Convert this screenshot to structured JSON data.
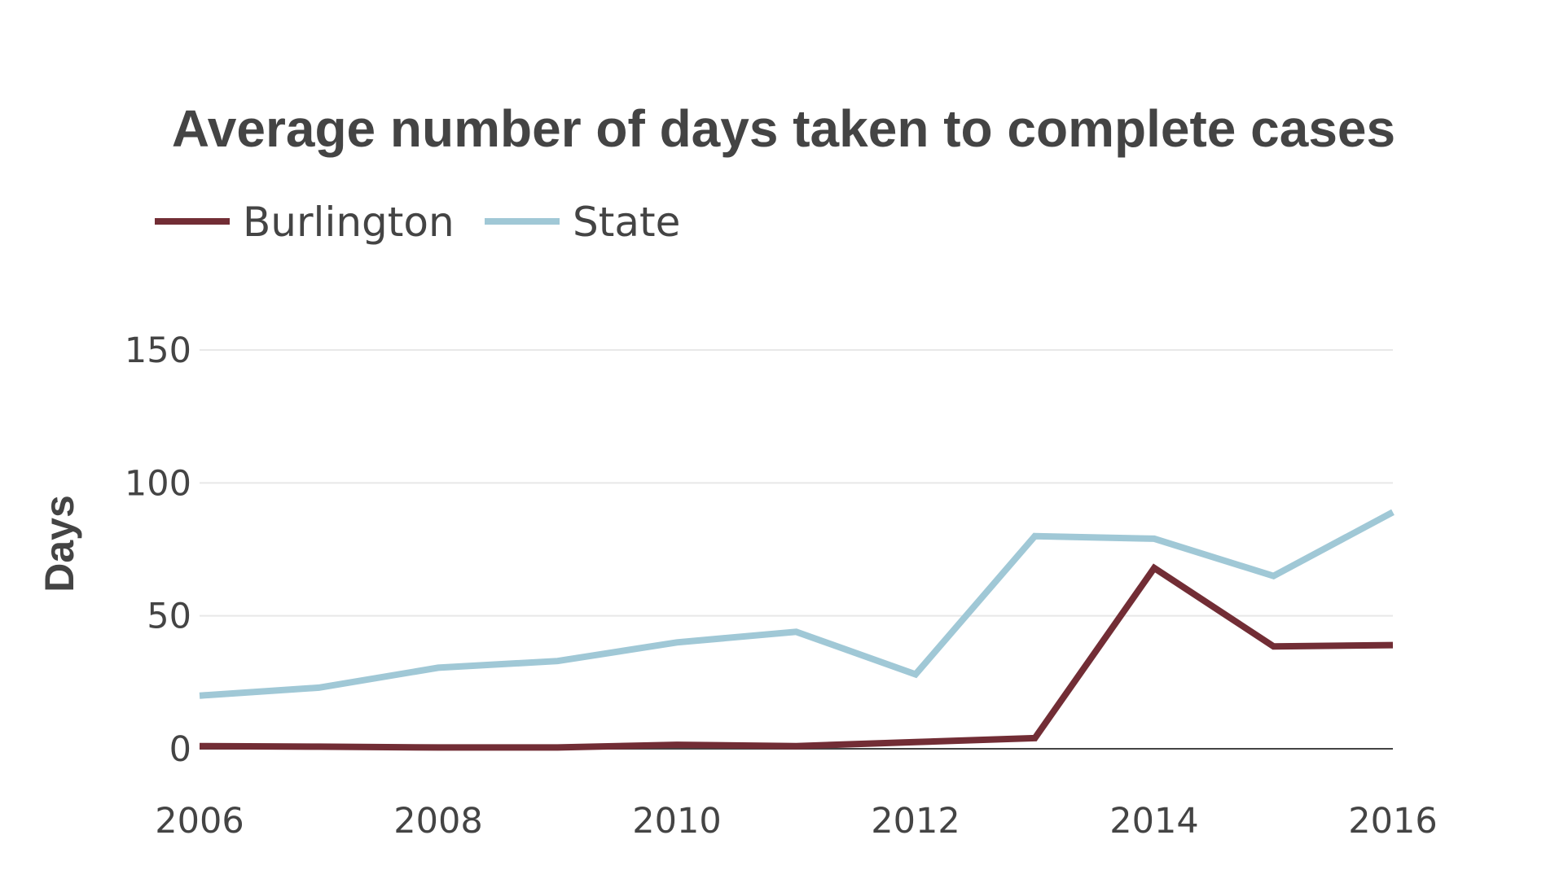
{
  "chart_data": {
    "type": "line",
    "title": "Average number of days taken to complete cases",
    "xlabel": "",
    "ylabel": "Days",
    "x": [
      2006,
      2007,
      2008,
      2009,
      2010,
      2011,
      2012,
      2013,
      2014,
      2015,
      2016
    ],
    "x_ticks": [
      "2006",
      "2008",
      "2010",
      "2012",
      "2014",
      "2016"
    ],
    "y_ticks": [
      "0",
      "50",
      "100",
      "150"
    ],
    "xlim": [
      2006,
      2016
    ],
    "ylim": [
      0,
      150
    ],
    "grid": true,
    "legend_position": "top-left",
    "series": [
      {
        "name": "Burlington",
        "color": "#722d35",
        "values": [
          1,
          0.8,
          0.5,
          0.5,
          1.5,
          1,
          2.5,
          4,
          68,
          38.5,
          39
        ]
      },
      {
        "name": "State",
        "color": "#a0c8d6",
        "values": [
          20,
          23,
          30.5,
          33,
          40,
          44,
          28,
          80,
          79,
          65,
          89
        ]
      }
    ]
  }
}
